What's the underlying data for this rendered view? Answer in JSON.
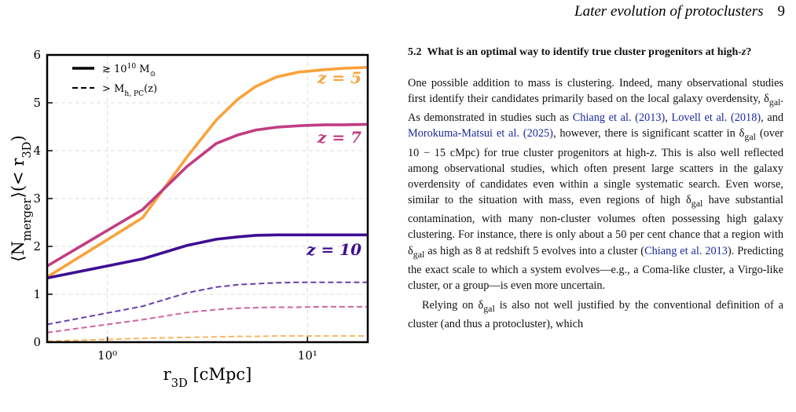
{
  "header": {
    "title": "Later evolution of protoclusters",
    "page": "9"
  },
  "chart_data": {
    "type": "line",
    "x": [
      0.5,
      1.5,
      2.5,
      3.5,
      4.5,
      5.5,
      7,
      9,
      12,
      15,
      20
    ],
    "xlim": [
      0.5,
      20
    ],
    "xscale": "log",
    "xticks": [
      {
        "value": 1,
        "label": "10⁰"
      },
      {
        "value": 10,
        "label": "10¹"
      }
    ],
    "ylim": [
      0,
      6
    ],
    "yticks": [
      0,
      1,
      2,
      3,
      4,
      5,
      6
    ],
    "grid": true,
    "xlabel": [
      "r",
      "3D",
      " [cMpc]"
    ],
    "ylabel": [
      "⟨N",
      "merger",
      "⟩(< r",
      "3D",
      ")"
    ],
    "legend": [
      {
        "label": [
          "≳ 10",
          "10",
          " M",
          "⊙"
        ],
        "dash": false
      },
      {
        "label": [
          "> M",
          "h, PC",
          "(z)"
        ],
        "dash": true
      }
    ],
    "series": [
      {
        "color": "#f9a23a",
        "dash": false,
        "values": [
          1.36,
          2.6,
          3.87,
          4.64,
          5.08,
          5.34,
          5.54,
          5.64,
          5.69,
          5.72,
          5.74
        ]
      },
      {
        "color": "#c13d82",
        "dash": false,
        "values": [
          1.59,
          2.77,
          3.67,
          4.15,
          4.33,
          4.43,
          4.49,
          4.52,
          4.54,
          4.54,
          4.55
        ]
      },
      {
        "color": "#3e0f93",
        "dash": false,
        "values": [
          1.34,
          1.74,
          2.02,
          2.15,
          2.2,
          2.23,
          2.24,
          2.24,
          2.24,
          2.24,
          2.24
        ]
      },
      {
        "color": "#f9a23a",
        "dash": true,
        "values": [
          0.02,
          0.08,
          0.1,
          0.11,
          0.12,
          0.12,
          0.13,
          0.13,
          0.13,
          0.13,
          0.13
        ]
      },
      {
        "color": "#c13d82",
        "dash": true,
        "values": [
          0.2,
          0.47,
          0.62,
          0.68,
          0.71,
          0.72,
          0.73,
          0.73,
          0.74,
          0.74,
          0.74
        ]
      },
      {
        "color": "#3e0f93",
        "dash": true,
        "values": [
          0.37,
          0.75,
          1.03,
          1.15,
          1.2,
          1.22,
          1.24,
          1.25,
          1.25,
          1.25,
          1.25
        ]
      }
    ],
    "annotations": [
      {
        "text": "z = 5",
        "color": "#f9a23a"
      },
      {
        "text": "z = 7",
        "color": "#c13d82"
      },
      {
        "text": "z = 10",
        "color": "#3e0f93"
      }
    ]
  },
  "section": {
    "number": "5.2",
    "title": "What is an optimal way to identify true cluster progenitors at high-",
    "title_z": "z",
    "title_end": "?"
  },
  "paragraphs": [
    [
      "One possible addition to mass is clustering. Indeed, many observational studies first identify their candidates primarily based on the local galaxy overdensity, δ",
      {
        "sub": "gal"
      },
      ". As demonstrated in studies such as ",
      {
        "cite": "Chiang et al. (2013)"
      },
      ", ",
      {
        "cite": "Lovell et al. (2018)"
      },
      ", and ",
      {
        "cite": "Morokuma-Matsui et al. (2025)"
      },
      ", however, there is significant scatter in δ",
      {
        "sub": "gal"
      },
      " (over 10 − 15 cMpc) for true cluster progenitors at high-",
      {
        "it": "z"
      },
      ". This is also well reflected among observational studies, which often present large scatters in the galaxy overdensity of candidates even within a single systematic search. Even worse, similar to the situation with mass, even regions of high δ",
      {
        "sub": "gal"
      },
      " have substantial contamination, with many non-cluster volumes often possessing high galaxy clustering. For instance, there is only about a 50 per cent chance that a region with δ",
      {
        "sub": "gal"
      },
      " as high as 8 at redshift 5 evolves into a cluster (",
      {
        "cite": "Chiang et al. 2013"
      },
      "). Predicting the exact scale to which a system evolves—e.g., a Coma-like cluster, a Virgo-like cluster, or a group—is even more uncertain."
    ],
    [
      "Relying on δ",
      {
        "sub": "gal"
      },
      " is also not well justified by the conventional definition of a cluster (and thus a protocluster), which"
    ]
  ]
}
